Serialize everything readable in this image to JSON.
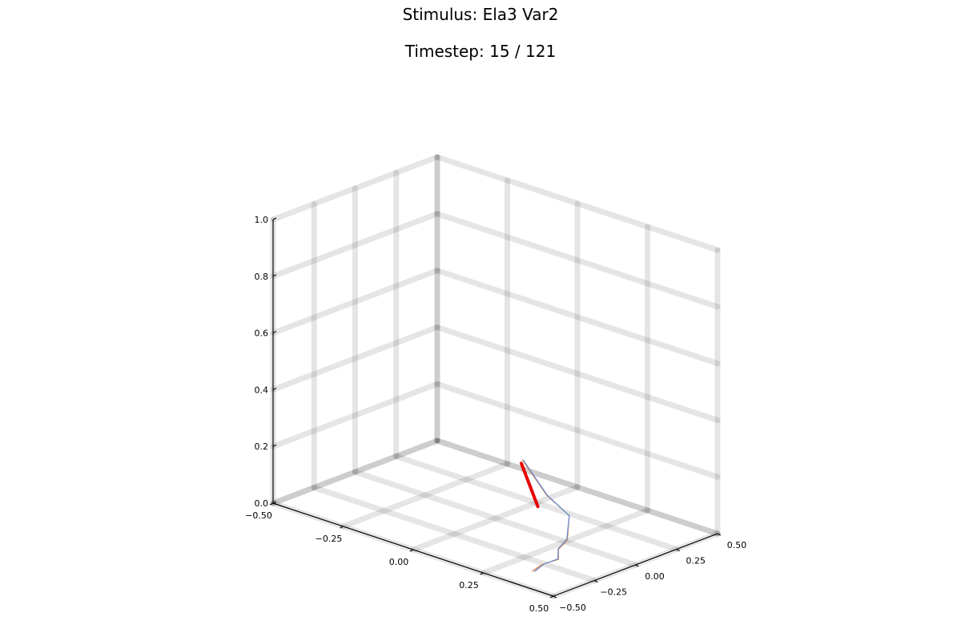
{
  "title": "Stimulus: Ela3 Var2",
  "subtitle": "Timestep: 15 / 121",
  "chart_data": {
    "type": "line",
    "projection": "3d",
    "title": "Stimulus: Ela3 Var2",
    "subtitle": "Timestep: 15 / 121",
    "xlabel": "",
    "ylabel": "",
    "zlabel": "",
    "xlim": [
      -0.5,
      0.5
    ],
    "ylim": [
      -0.5,
      0.5
    ],
    "zlim": [
      0.0,
      1.0
    ],
    "x_ticks": [
      -0.5,
      -0.25,
      0.0,
      0.25,
      0.5
    ],
    "y_ticks": [
      -0.5,
      -0.25,
      0.0,
      0.25,
      0.5
    ],
    "z_ticks": [
      0.0,
      0.2,
      0.4,
      0.6,
      0.8,
      1.0
    ],
    "x_tick_labels": [
      "−0.50",
      "−0.25",
      "0.00",
      "0.25",
      "0.50"
    ],
    "y_tick_labels": [
      "−0.50",
      "−0.25",
      "0.00",
      "0.25",
      "0.50"
    ],
    "z_tick_labels": [
      "0.0",
      "0.2",
      "0.4",
      "0.6",
      "0.8",
      "1.0"
    ],
    "grid": true,
    "legend": "none",
    "series": [
      {
        "color": "#e80000",
        "values": [
          [
            0.178,
            -0.045,
            0.11
          ],
          [
            0.115,
            -0.038,
            0.24
          ]
        ]
      },
      {
        "color": "#e0803a",
        "values": [
          [
            0.335,
            -0.345,
            0.0
          ],
          [
            0.32,
            -0.258,
            0.0
          ],
          [
            0.325,
            -0.17,
            0.0
          ],
          [
            0.275,
            -0.085,
            0.0
          ],
          [
            0.245,
            0.02,
            0.0
          ],
          [
            0.205,
            0.1,
            0.055
          ],
          [
            0.165,
            0.03,
            0.13
          ],
          [
            0.115,
            -0.03,
            0.25
          ]
        ]
      },
      {
        "color": "#6b8fd6",
        "values": [
          [
            0.34,
            -0.34,
            0.0
          ],
          [
            0.322,
            -0.255,
            0.0
          ],
          [
            0.322,
            -0.168,
            0.0
          ],
          [
            0.272,
            -0.082,
            0.0
          ],
          [
            0.242,
            0.022,
            0.0
          ],
          [
            0.205,
            0.1,
            0.055
          ],
          [
            0.168,
            0.03,
            0.13
          ],
          [
            0.118,
            -0.03,
            0.25
          ]
        ]
      }
    ]
  }
}
